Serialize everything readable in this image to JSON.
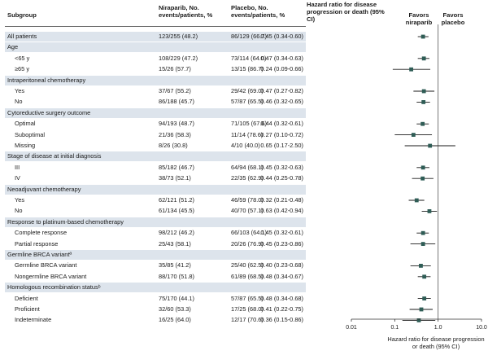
{
  "chart_data": {
    "type": "forest",
    "columns": {
      "subgroup": "Subgroup",
      "niraparib": "Niraparib, No. events/patients, %",
      "placebo": "Placebo, No. events/patients, %",
      "hr": "Hazard ratio for disease progression or death (95% CI)"
    },
    "favors_left": "Favors niraparib",
    "favors_right": "Favors placebo",
    "xlabel": "Hazard ratio for disease progression or death (95% CI)",
    "x_scale": "log",
    "xlim": [
      0.01,
      10.0
    ],
    "x_ticks": [
      "0.01",
      "0.1",
      "1.0",
      "10.0"
    ],
    "x_tick_values": [
      0.01,
      0.1,
      1.0,
      10.0
    ],
    "reference_line": 1.0,
    "rows": [
      {
        "label": "All patients",
        "type": "section-data",
        "niraparib": "123/255 (48.2)",
        "placebo": "86/129 (66.7)",
        "hr_text": "0.45 (0.34-0.60)",
        "hr": 0.45,
        "lo": 0.34,
        "hi": 0.6
      },
      {
        "label": "Age",
        "type": "section"
      },
      {
        "label": "<65 y",
        "type": "sub",
        "niraparib": "108/229 (47.2)",
        "placebo": "73/114 (64.0)",
        "hr_text": "0.47 (0.34-0.63)",
        "hr": 0.47,
        "lo": 0.34,
        "hi": 0.63
      },
      {
        "label": "≥65 y",
        "type": "sub",
        "niraparib": "15/26 (57.7)",
        "placebo": "13/15 (86.7)",
        "hr_text": "0.24 (0.09-0.66)",
        "hr": 0.24,
        "lo": 0.09,
        "hi": 0.66
      },
      {
        "label": "Intraperitoneal chemotherapy",
        "type": "section"
      },
      {
        "label": "Yes",
        "type": "sub",
        "niraparib": "37/67 (55.2)",
        "placebo": "29/42 (69.0)",
        "hr_text": "0.47 (0.27-0.82)",
        "hr": 0.47,
        "lo": 0.27,
        "hi": 0.82
      },
      {
        "label": "No",
        "type": "sub",
        "niraparib": "86/188 (45.7)",
        "placebo": "57/87 (65.5)",
        "hr_text": "0.46 (0.32-0.65)",
        "hr": 0.46,
        "lo": 0.32,
        "hi": 0.65
      },
      {
        "label": "Cytoreductive surgery outcome",
        "type": "section"
      },
      {
        "label": "Optimal",
        "type": "sub",
        "niraparib": "94/193 (48.7)",
        "placebo": "71/105 (67.6)",
        "hr_text": "0.44 (0.32-0.61)",
        "hr": 0.44,
        "lo": 0.32,
        "hi": 0.61
      },
      {
        "label": "Suboptimal",
        "type": "sub",
        "niraparib": "21/36 (58.3)",
        "placebo": "11/14 (78.6)",
        "hr_text": "0.27 (0.10-0.72)",
        "hr": 0.27,
        "lo": 0.1,
        "hi": 0.72
      },
      {
        "label": "Missing",
        "type": "sub",
        "niraparib": "8/26 (30.8)",
        "placebo": "4/10 (40.0)",
        "hr_text": "0.65 (0.17-2.50)",
        "hr": 0.65,
        "lo": 0.17,
        "hi": 2.5
      },
      {
        "label": "Stage of disease at initial diagnosis",
        "type": "section"
      },
      {
        "label": "III",
        "type": "sub",
        "niraparib": "85/182 (46.7)",
        "placebo": "64/94 (68.1)",
        "hr_text": "0.45 (0.32-0.63)",
        "hr": 0.45,
        "lo": 0.32,
        "hi": 0.63
      },
      {
        "label": "IV",
        "type": "sub",
        "niraparib": "38/73 (52.1)",
        "placebo": "22/35 (62.9)",
        "hr_text": "0.44 (0.25-0.78)",
        "hr": 0.44,
        "lo": 0.25,
        "hi": 0.78
      },
      {
        "label": "Neoadjuvant chemotherapy",
        "type": "section"
      },
      {
        "label": "Yes",
        "type": "sub",
        "niraparib": "62/121 (51.2)",
        "placebo": "46/59 (78.0)",
        "hr_text": "0.32 (0.21-0.48)",
        "hr": 0.32,
        "lo": 0.21,
        "hi": 0.48
      },
      {
        "label": "No",
        "type": "sub",
        "niraparib": "61/134 (45.5)",
        "placebo": "40/70 (57.1)",
        "hr_text": "0.63 (0.42-0.94)",
        "hr": 0.63,
        "lo": 0.42,
        "hi": 0.94
      },
      {
        "label": "Response to platinum-based chemotherapy",
        "type": "section"
      },
      {
        "label": "Complete response",
        "type": "sub",
        "niraparib": "98/212 (46.2)",
        "placebo": "66/103 (64.1)",
        "hr_text": "0.45 (0.32-0.61)",
        "hr": 0.45,
        "lo": 0.32,
        "hi": 0.61
      },
      {
        "label": "Partial response",
        "type": "sub",
        "niraparib": "25/43 (58.1)",
        "placebo": "20/26 (76.9)",
        "hr_text": "0.45 (0.23-0.86)",
        "hr": 0.45,
        "lo": 0.23,
        "hi": 0.86
      },
      {
        "label": "Germline BRCA variantª",
        "type": "section"
      },
      {
        "label": "Germline BRCA variant",
        "type": "sub",
        "niraparib": "35/85 (41.2)",
        "placebo": "25/40 (62.5)",
        "hr_text": "0.40 (0.23-0.68)",
        "hr": 0.4,
        "lo": 0.23,
        "hi": 0.68
      },
      {
        "label": "Nongermline BRCA variant",
        "type": "sub",
        "niraparib": "88/170 (51.8)",
        "placebo": "61/89 (68.5)",
        "hr_text": "0.48 (0.34-0.67)",
        "hr": 0.48,
        "lo": 0.34,
        "hi": 0.67
      },
      {
        "label": "Homologous recombination statusᵇ",
        "type": "section"
      },
      {
        "label": "Deficient",
        "type": "sub",
        "niraparib": "75/170 (44.1)",
        "placebo": "57/87 (65.5)",
        "hr_text": "0.48 (0.34-0.68)",
        "hr": 0.48,
        "lo": 0.34,
        "hi": 0.68
      },
      {
        "label": "Proficient",
        "type": "sub",
        "niraparib": "32/60 (53.3)",
        "placebo": "17/25 (68.0)",
        "hr_text": "0.41 (0.22-0.75)",
        "hr": 0.41,
        "lo": 0.22,
        "hi": 0.75
      },
      {
        "label": "Indeterminate",
        "type": "sub",
        "niraparib": "16/25 (64.0)",
        "placebo": "12/17 (70.6)",
        "hr_text": "0.36 (0.15-0.86)",
        "hr": 0.36,
        "lo": 0.15,
        "hi": 0.86
      }
    ],
    "colors": {
      "section_band": "#dde4ec",
      "marker": "#2f5d56",
      "ci_line": "#1a1a1a"
    }
  }
}
